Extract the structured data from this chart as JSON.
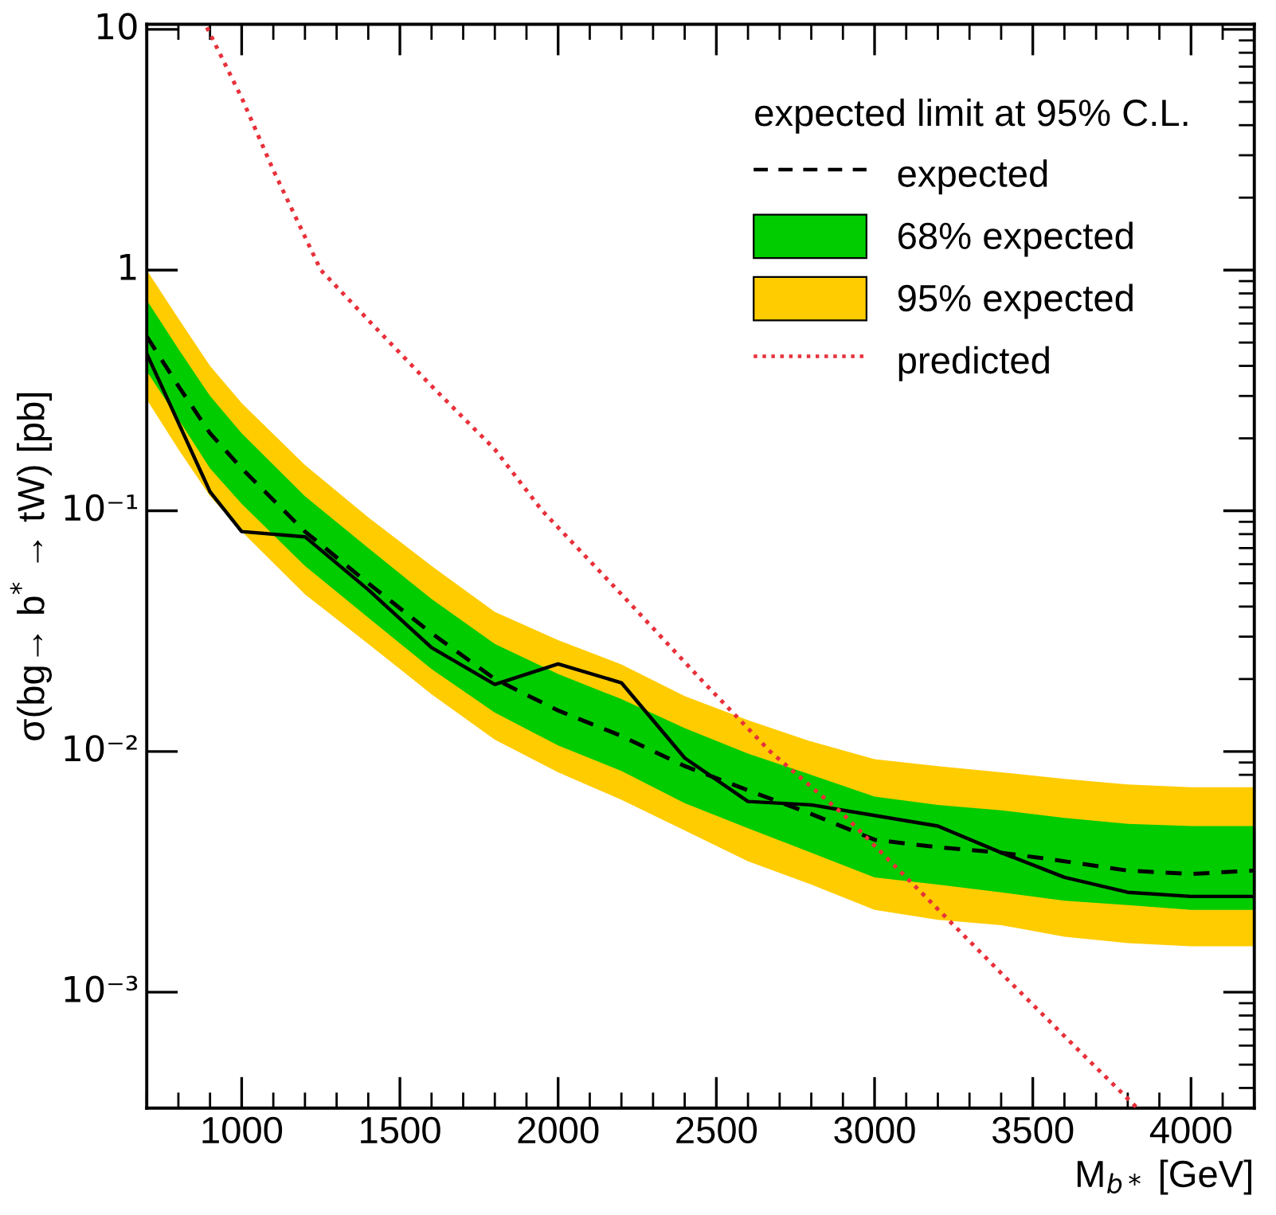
{
  "chart_data": {
    "type": "line",
    "xlabel": "M$_{b*}$ [GeV]",
    "ylabel": "σ(bg→ b$^{*}$ → tW) [pb]",
    "legend_title": "expected limit at 95% C.L.",
    "legend": "top right",
    "log": "y",
    "grid": false,
    "xlim": [
      700,
      4200
    ],
    "xticks": [
      1000,
      1500,
      2000,
      2500,
      3000,
      3500,
      4000
    ],
    "ylim": [
      0.00033,
      10.5
    ],
    "yticks": [
      {
        "value": 0.001,
        "label": "10⁻³"
      },
      {
        "value": 0.01,
        "label": "10⁻²"
      },
      {
        "value": 0.1,
        "label": "10⁻¹"
      },
      1,
      10
    ],
    "series": [
      {
        "name": "expected",
        "type": "line",
        "color": "#000000",
        "line_style": "dashed",
        "x": [
          700,
          800,
          900,
          1000,
          1200,
          1400,
          1600,
          1800,
          2000,
          2200,
          2400,
          2600,
          2800,
          3000,
          3200,
          3400,
          3600,
          3800,
          4000,
          4200
        ],
        "values": [
          0.53,
          0.33,
          0.21,
          0.15,
          0.082,
          0.05,
          0.031,
          0.02,
          0.0148,
          0.0116,
          0.0087,
          0.0069,
          0.0055,
          0.0043,
          0.004,
          0.0038,
          0.0035,
          0.0032,
          0.0031,
          0.0032
        ]
      },
      {
        "name": "68% expected",
        "color": "#00cc00",
        "x": [
          700,
          800,
          900,
          1000,
          1200,
          1400,
          1600,
          1800,
          2000,
          2200,
          2400,
          2600,
          2800,
          3000,
          3200,
          3400,
          3600,
          3800,
          4000,
          4200
        ],
        "values": [
          null,
          null,
          null,
          null,
          null,
          null,
          null,
          null,
          null,
          null,
          null,
          null,
          null,
          null,
          null,
          null,
          null,
          null,
          null,
          null
        ],
        "lower": [
          0.38,
          0.24,
          0.15,
          0.107,
          0.059,
          0.036,
          0.022,
          0.0145,
          0.0106,
          0.0083,
          0.0061,
          0.0048,
          0.0038,
          0.003,
          0.0028,
          0.0026,
          0.0024,
          0.0023,
          0.0022,
          0.0022
        ],
        "upper": [
          0.75,
          0.47,
          0.3,
          0.21,
          0.115,
          0.07,
          0.043,
          0.028,
          0.021,
          0.0165,
          0.0125,
          0.0098,
          0.008,
          0.0065,
          0.006,
          0.0057,
          0.0053,
          0.005,
          0.0049,
          0.0049
        ]
      },
      {
        "name": "95% expected",
        "color": "#ffcc00",
        "x": [
          700,
          800,
          900,
          1000,
          1200,
          1400,
          1600,
          1800,
          2000,
          2200,
          2400,
          2600,
          2800,
          3000,
          3200,
          3400,
          3600,
          3800,
          4000,
          4200
        ],
        "values": [
          null,
          null,
          null,
          null,
          null,
          null,
          null,
          null,
          null,
          null,
          null,
          null,
          null,
          null,
          null,
          null,
          null,
          null,
          null,
          null
        ],
        "lower": [
          0.29,
          0.18,
          0.115,
          0.082,
          0.045,
          0.028,
          0.0173,
          0.0112,
          0.0082,
          0.0063,
          0.0047,
          0.0035,
          0.0028,
          0.0022,
          0.002,
          0.0019,
          0.0017,
          0.0016,
          0.00155,
          0.00155
        ],
        "upper": [
          1.0,
          0.63,
          0.4,
          0.28,
          0.155,
          0.094,
          0.059,
          0.038,
          0.029,
          0.023,
          0.017,
          0.0135,
          0.011,
          0.0093,
          0.0087,
          0.0082,
          0.0077,
          0.0073,
          0.0071,
          0.0071
        ]
      },
      {
        "type": "line",
        "color": "#000000",
        "line_style": "solid",
        "x": [
          700,
          900,
          1000,
          1200,
          1400,
          1600,
          1800,
          2000,
          2200,
          2400,
          2600,
          2800,
          3200,
          3400,
          3600,
          3800,
          4000,
          4200
        ],
        "values": [
          0.45,
          0.12,
          0.082,
          0.078,
          0.047,
          0.027,
          0.019,
          0.0231,
          0.0193,
          0.0094,
          0.0062,
          0.006,
          0.0049,
          0.0038,
          0.003,
          0.0026,
          0.0025,
          0.0025
        ]
      },
      {
        "name": "predicted",
        "type": "line",
        "color": "#e8303a",
        "line_style": "dotted",
        "x": [
          890,
          1000,
          1100,
          1250,
          1400,
          1600,
          1800,
          1950,
          2200,
          2450,
          2670,
          2900,
          3160,
          3400,
          3630,
          3830
        ],
        "values": [
          10.2,
          5.2,
          2.6,
          1.0,
          0.62,
          0.33,
          0.18,
          0.1,
          0.045,
          0.02,
          0.01,
          0.0055,
          0.0025,
          0.0012,
          0.0006,
          0.00033
        ]
      }
    ]
  }
}
